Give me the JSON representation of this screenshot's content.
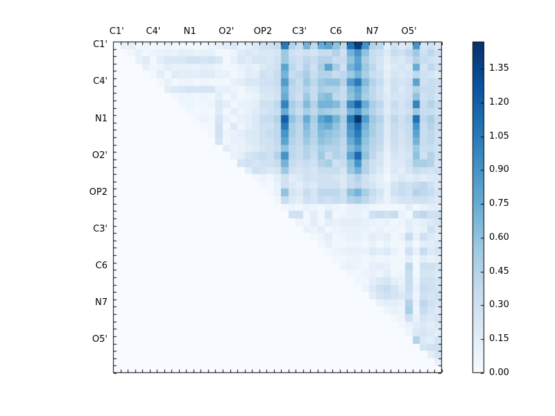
{
  "figure": {
    "background_color": "#ffffff",
    "frame_color": "#000000",
    "tick_color": "#000000",
    "label_color": "#000000"
  },
  "chart_data": {
    "type": "heatmap",
    "title": "",
    "xlabel": "",
    "ylabel": "",
    "matrix_size": 45,
    "triangle": "upper",
    "tick_labels": [
      "C1'",
      "C4'",
      "N1",
      "O2'",
      "OP2",
      "C3'",
      "C6",
      "N7",
      "O5'"
    ],
    "tick_positions": [
      0,
      5,
      10,
      15,
      20,
      25,
      30,
      35,
      40
    ],
    "vmin": 0.0,
    "vmax": 1.47,
    "colormap": "Blues",
    "colormap_stops": [
      [
        0.0,
        "#f7fbff"
      ],
      [
        0.125,
        "#deebf7"
      ],
      [
        0.25,
        "#c6dbef"
      ],
      [
        0.375,
        "#9ecae1"
      ],
      [
        0.5,
        "#6baed6"
      ],
      [
        0.625,
        "#4292c6"
      ],
      [
        0.75,
        "#2171b5"
      ],
      [
        0.875,
        "#08519c"
      ],
      [
        1.0,
        "#08306b"
      ]
    ],
    "colorbar": {
      "tick_labels": [
        "0.00",
        "0.15",
        "0.30",
        "0.45",
        "0.60",
        "0.75",
        "0.90",
        "1.05",
        "1.20",
        "1.35"
      ],
      "tick_values": [
        0.0,
        0.15,
        0.3,
        0.45,
        0.6,
        0.75,
        0.9,
        1.05,
        1.2,
        1.35
      ],
      "position": "right"
    },
    "upper_rows": [
      [
        0.1,
        0.12,
        0.04,
        0.07,
        0.03,
        0.05,
        0.08,
        0.03,
        0.05,
        0.04,
        0.03,
        0.05,
        0.07,
        0.1,
        0.15,
        0.2,
        0.12,
        0.15,
        0.2,
        0.3,
        0.3,
        0.35,
        1.05,
        0.45,
        0.35,
        0.7,
        0.4,
        0.75,
        0.8,
        0.6,
        0.4,
        1.1,
        1.4,
        0.9,
        0.45,
        0.4,
        0.15,
        0.3,
        0.2,
        0.25,
        0.9,
        0.25,
        0.3,
        0.2
      ],
      [
        0.05,
        0.12,
        0.05,
        0.08,
        0.1,
        0.12,
        0.1,
        0.15,
        0.15,
        0.1,
        0.12,
        0.12,
        0.05,
        0.04,
        0.08,
        0.18,
        0.22,
        0.18,
        0.22,
        0.22,
        0.25,
        0.55,
        0.3,
        0.25,
        0.3,
        0.25,
        0.35,
        0.35,
        0.45,
        0.3,
        0.7,
        0.9,
        0.6,
        0.35,
        0.3,
        0.2,
        0.35,
        0.3,
        0.4,
        0.55,
        0.3,
        0.4,
        0.3
      ],
      [
        0.12,
        0.18,
        0.05,
        0.15,
        0.22,
        0.22,
        0.22,
        0.28,
        0.28,
        0.25,
        0.28,
        0.22,
        0.05,
        0.12,
        0.22,
        0.18,
        0.25,
        0.25,
        0.22,
        0.3,
        0.55,
        0.35,
        0.3,
        0.4,
        0.35,
        0.45,
        0.45,
        0.35,
        0.35,
        0.6,
        0.8,
        0.5,
        0.35,
        0.25,
        0.15,
        0.25,
        0.2,
        0.3,
        0.45,
        0.35,
        0.3,
        0.25
      ],
      [
        0.1,
        0.05,
        0.08,
        0.15,
        0.1,
        0.12,
        0.12,
        0.1,
        0.15,
        0.12,
        0.08,
        0.04,
        0.06,
        0.1,
        0.15,
        0.12,
        0.2,
        0.25,
        0.3,
        0.8,
        0.4,
        0.3,
        0.45,
        0.3,
        0.5,
        0.8,
        0.5,
        0.3,
        0.7,
        0.85,
        0.55,
        0.4,
        0.25,
        0.12,
        0.2,
        0.25,
        0.2,
        0.75,
        0.25,
        0.4,
        0.3
      ],
      [
        0.05,
        0.15,
        0.05,
        0.18,
        0.15,
        0.15,
        0.15,
        0.18,
        0.18,
        0.1,
        0.1,
        0.05,
        0.08,
        0.18,
        0.15,
        0.3,
        0.25,
        0.35,
        0.7,
        0.35,
        0.4,
        0.5,
        0.35,
        0.45,
        0.45,
        0.35,
        0.4,
        0.55,
        0.7,
        0.5,
        0.35,
        0.3,
        0.15,
        0.25,
        0.2,
        0.25,
        0.4,
        0.3,
        0.25,
        0.2
      ],
      [
        0.05,
        0.12,
        0.05,
        0.08,
        0.08,
        0.05,
        0.08,
        0.05,
        0.05,
        0.05,
        0.1,
        0.15,
        0.22,
        0.22,
        0.28,
        0.3,
        0.35,
        0.85,
        0.45,
        0.35,
        0.55,
        0.4,
        0.55,
        0.6,
        0.6,
        0.45,
        0.85,
        1.05,
        0.65,
        0.45,
        0.35,
        0.18,
        0.3,
        0.25,
        0.3,
        0.8,
        0.3,
        0.35,
        0.3
      ],
      [
        0.15,
        0.2,
        0.22,
        0.25,
        0.25,
        0.25,
        0.25,
        0.12,
        0.12,
        0.08,
        0.05,
        0.12,
        0.15,
        0.25,
        0.25,
        0.3,
        0.7,
        0.4,
        0.35,
        0.45,
        0.35,
        0.5,
        0.45,
        0.45,
        0.35,
        0.65,
        0.8,
        0.55,
        0.4,
        0.3,
        0.15,
        0.3,
        0.2,
        0.3,
        0.45,
        0.35,
        0.35,
        0.3
      ],
      [
        0.05,
        0.08,
        0.08,
        0.05,
        0.08,
        0.05,
        0.15,
        0.05,
        0.12,
        0.05,
        0.08,
        0.1,
        0.2,
        0.22,
        0.28,
        0.75,
        0.4,
        0.3,
        0.55,
        0.35,
        0.6,
        0.65,
        0.4,
        0.35,
        0.6,
        0.75,
        0.5,
        0.4,
        0.3,
        0.18,
        0.25,
        0.25,
        0.3,
        0.6,
        0.3,
        0.35,
        0.25
      ],
      [
        0.05,
        0.08,
        0.05,
        0.05,
        0.08,
        0.2,
        0.15,
        0.05,
        0.1,
        0.12,
        0.15,
        0.3,
        0.3,
        0.4,
        1.0,
        0.5,
        0.4,
        0.65,
        0.45,
        0.7,
        0.7,
        0.65,
        0.45,
        0.95,
        1.2,
        0.75,
        0.5,
        0.4,
        0.2,
        0.35,
        0.25,
        0.35,
        1.0,
        0.35,
        0.45,
        0.35
      ],
      [
        0.05,
        0.04,
        0.05,
        0.04,
        0.18,
        0.05,
        0.15,
        0.08,
        0.12,
        0.18,
        0.25,
        0.3,
        0.35,
        0.75,
        0.45,
        0.35,
        0.5,
        0.4,
        0.55,
        0.5,
        0.45,
        0.4,
        0.7,
        0.85,
        0.6,
        0.45,
        0.35,
        0.18,
        0.3,
        0.25,
        0.3,
        0.55,
        0.35,
        0.35,
        0.3
      ],
      [
        0.05,
        0.08,
        0.05,
        0.25,
        0.1,
        0.05,
        0.12,
        0.15,
        0.2,
        0.35,
        0.35,
        0.45,
        1.2,
        0.6,
        0.45,
        0.75,
        0.5,
        0.8,
        0.9,
        0.7,
        0.5,
        1.05,
        1.45,
        0.85,
        0.55,
        0.45,
        0.22,
        0.4,
        0.3,
        0.4,
        1.1,
        0.4,
        0.5,
        0.35
      ],
      [
        0.04,
        0.05,
        0.3,
        0.05,
        0.2,
        0.08,
        0.15,
        0.2,
        0.3,
        0.3,
        0.4,
        1.05,
        0.5,
        0.4,
        0.65,
        0.45,
        0.7,
        0.75,
        0.6,
        0.45,
        0.9,
        1.15,
        0.7,
        0.5,
        0.4,
        0.2,
        0.35,
        0.3,
        0.35,
        0.9,
        0.35,
        0.45,
        0.35
      ],
      [
        0.05,
        0.3,
        0.08,
        0.1,
        0.15,
        0.2,
        0.22,
        0.3,
        0.35,
        0.4,
        0.9,
        0.5,
        0.4,
        0.6,
        0.45,
        0.65,
        0.6,
        0.55,
        0.45,
        0.85,
        1.05,
        0.65,
        0.5,
        0.4,
        0.2,
        0.35,
        0.25,
        0.35,
        0.8,
        0.35,
        0.4,
        0.3
      ],
      [
        0.25,
        0.06,
        0.12,
        0.1,
        0.18,
        0.2,
        0.28,
        0.3,
        0.38,
        0.8,
        0.45,
        0.38,
        0.55,
        0.42,
        0.6,
        0.55,
        0.5,
        0.4,
        0.75,
        0.95,
        0.6,
        0.45,
        0.38,
        0.18,
        0.32,
        0.25,
        0.32,
        0.7,
        0.35,
        0.4,
        0.3
      ],
      [
        0.15,
        0.08,
        0.12,
        0.15,
        0.18,
        0.25,
        0.28,
        0.35,
        0.6,
        0.4,
        0.35,
        0.45,
        0.38,
        0.5,
        0.45,
        0.45,
        0.38,
        0.65,
        0.8,
        0.55,
        0.42,
        0.35,
        0.15,
        0.3,
        0.22,
        0.3,
        0.55,
        0.32,
        0.35,
        0.28
      ],
      [
        0.1,
        0.15,
        0.25,
        0.3,
        0.35,
        0.3,
        0.45,
        0.9,
        0.4,
        0.35,
        0.45,
        0.35,
        0.55,
        0.35,
        0.45,
        0.4,
        0.8,
        1.15,
        0.6,
        0.4,
        0.25,
        0.12,
        0.25,
        0.2,
        0.25,
        0.6,
        0.3,
        0.45,
        0.3
      ],
      [
        0.25,
        0.3,
        0.25,
        0.3,
        0.3,
        0.35,
        0.7,
        0.35,
        0.3,
        0.35,
        0.3,
        0.45,
        0.5,
        0.3,
        0.35,
        0.6,
        0.9,
        0.45,
        0.3,
        0.25,
        0.1,
        0.2,
        0.2,
        0.3,
        0.5,
        0.5,
        0.45,
        0.25
      ],
      [
        0.15,
        0.3,
        0.25,
        0.2,
        0.25,
        0.55,
        0.3,
        0.25,
        0.3,
        0.25,
        0.35,
        0.35,
        0.35,
        0.25,
        0.55,
        0.7,
        0.45,
        0.3,
        0.2,
        0.08,
        0.2,
        0.15,
        0.25,
        0.35,
        0.3,
        0.25,
        0.3
      ],
      [
        0.05,
        0.08,
        0.05,
        0.15,
        0.3,
        0.15,
        0.2,
        0.3,
        0.25,
        0.3,
        0.3,
        0.25,
        0.2,
        0.35,
        0.45,
        0.3,
        0.2,
        0.15,
        0.05,
        0.15,
        0.2,
        0.15,
        0.2,
        0.15,
        0.2,
        0.2
      ],
      [
        0.05,
        0.04,
        0.1,
        0.3,
        0.2,
        0.15,
        0.25,
        0.2,
        0.3,
        0.3,
        0.3,
        0.2,
        0.35,
        0.4,
        0.3,
        0.25,
        0.15,
        0.1,
        0.25,
        0.35,
        0.3,
        0.35,
        0.4,
        0.3,
        0.2
      ],
      [
        0.04,
        0.1,
        0.6,
        0.25,
        0.2,
        0.35,
        0.25,
        0.4,
        0.4,
        0.4,
        0.3,
        0.6,
        0.7,
        0.5,
        0.35,
        0.25,
        0.1,
        0.3,
        0.35,
        0.3,
        0.45,
        0.4,
        0.35,
        0.25
      ],
      [
        0.05,
        0.35,
        0.2,
        0.15,
        0.3,
        0.25,
        0.35,
        0.3,
        0.35,
        0.3,
        0.45,
        0.5,
        0.4,
        0.3,
        0.2,
        0.1,
        0.2,
        0.25,
        0.25,
        0.3,
        0.3,
        0.25,
        0.2
      ],
      [
        0.05,
        0.08,
        0.05,
        0.1,
        0.08,
        0.05,
        0.1,
        0.08,
        0.05,
        0.1,
        0.12,
        0.1,
        0.08,
        0.05,
        0.05,
        0.05,
        0.05,
        0.15,
        0.05,
        0.1,
        0.15,
        0.15
      ],
      [
        0.3,
        0.3,
        0.05,
        0.15,
        0.05,
        0.25,
        0.05,
        0.08,
        0.1,
        0.1,
        0.08,
        0.3,
        0.35,
        0.3,
        0.35,
        0.1,
        0.05,
        0.35,
        0.4,
        0.3,
        0.3
      ],
      [
        0.08,
        0.05,
        0.15,
        0.05,
        0.15,
        0.1,
        0.15,
        0.15,
        0.15,
        0.12,
        0.1,
        0.08,
        0.1,
        0.05,
        0.08,
        0.15,
        0.1,
        0.15,
        0.2,
        0.25
      ],
      [
        0.1,
        0.08,
        0.15,
        0.05,
        0.08,
        0.1,
        0.12,
        0.12,
        0.1,
        0.08,
        0.1,
        0.05,
        0.08,
        0.05,
        0.15,
        0.08,
        0.12,
        0.3,
        0.2
      ],
      [
        0.05,
        0.08,
        0.15,
        0.05,
        0.08,
        0.1,
        0.1,
        0.08,
        0.15,
        0.1,
        0.15,
        0.05,
        0.1,
        0.35,
        0.1,
        0.3,
        0.2,
        0.15
      ],
      [
        0.05,
        0.1,
        0.05,
        0.05,
        0.08,
        0.08,
        0.05,
        0.1,
        0.05,
        0.1,
        0.05,
        0.05,
        0.15,
        0.05,
        0.15,
        0.15,
        0.2
      ],
      [
        0.05,
        0.08,
        0.1,
        0.12,
        0.12,
        0.1,
        0.2,
        0.15,
        0.2,
        0.1,
        0.05,
        0.3,
        0.1,
        0.35,
        0.2,
        0.25
      ],
      [
        0.05,
        0.05,
        0.08,
        0.08,
        0.05,
        0.08,
        0.05,
        0.08,
        0.05,
        0.05,
        0.15,
        0.05,
        0.15,
        0.1,
        0.15
      ],
      [
        0.08,
        0.1,
        0.08,
        0.05,
        0.12,
        0.15,
        0.1,
        0.05,
        0.05,
        0.4,
        0.05,
        0.3,
        0.3,
        0.25
      ],
      [
        0.05,
        0.05,
        0.08,
        0.1,
        0.08,
        0.15,
        0.05,
        0.08,
        0.35,
        0.05,
        0.25,
        0.25,
        0.2
      ],
      [
        0.05,
        0.05,
        0.15,
        0.2,
        0.25,
        0.15,
        0.1,
        0.35,
        0.08,
        0.3,
        0.3,
        0.25
      ],
      [
        0.08,
        0.2,
        0.3,
        0.35,
        0.25,
        0.15,
        0.35,
        0.1,
        0.35,
        0.3,
        0.25
      ],
      [
        0.15,
        0.25,
        0.3,
        0.25,
        0.2,
        0.3,
        0.08,
        0.3,
        0.25,
        0.3
      ],
      [
        0.1,
        0.15,
        0.15,
        0.1,
        0.45,
        0.1,
        0.4,
        0.3,
        0.25
      ],
      [
        0.08,
        0.1,
        0.08,
        0.5,
        0.08,
        0.35,
        0.25,
        0.2
      ],
      [
        0.05,
        0.08,
        0.3,
        0.1,
        0.25,
        0.2,
        0.25
      ],
      [
        0.05,
        0.1,
        0.15,
        0.2,
        0.15,
        0.2
      ],
      [
        0.08,
        0.2,
        0.25,
        0.2,
        0.15
      ],
      [
        0.45,
        0.2,
        0.15,
        0.25
      ],
      [
        0.25,
        0.3,
        0.3
      ],
      [
        0.15,
        0.25
      ],
      [
        0.1
      ],
      []
    ]
  }
}
